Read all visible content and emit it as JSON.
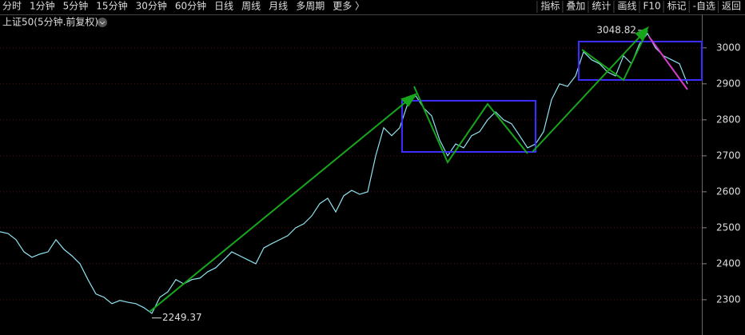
{
  "toolbar": {
    "left": [
      "分时",
      "1分钟",
      "5分钟",
      "15分钟",
      "30分钟",
      "60分钟",
      "日线",
      "周线",
      "月线",
      "多周期",
      "更多 〉"
    ],
    "active": 2,
    "right": [
      "指标",
      "叠加",
      "统计",
      "画线",
      "F10",
      "标记",
      "-自选",
      "返回"
    ]
  },
  "chart_data": {
    "type": "line",
    "title": "上证50(5分钟.前复权)",
    "color": "#8fe3f0",
    "values": [
      2489,
      2484,
      2467,
      2433,
      2418,
      2427,
      2433,
      2467,
      2440,
      2422,
      2400,
      2356,
      2316,
      2307,
      2289,
      2298,
      2293,
      2289,
      2278,
      2262,
      2307,
      2322,
      2356,
      2344,
      2356,
      2360,
      2378,
      2389,
      2411,
      2433,
      2422,
      2411,
      2400,
      2444,
      2456,
      2467,
      2478,
      2500,
      2511,
      2533,
      2567,
      2582,
      2544,
      2589,
      2604,
      2593,
      2600,
      2700,
      2778,
      2756,
      2778,
      2844,
      2867,
      2833,
      2811,
      2744,
      2700,
      2733,
      2722,
      2756,
      2767,
      2800,
      2822,
      2800,
      2789,
      2756,
      2722,
      2733,
      2767,
      2856,
      2900,
      2893,
      2922,
      2989,
      2967,
      2956,
      2933,
      2922,
      2978,
      2956,
      3011,
      3040,
      3000,
      2978,
      2967,
      2956,
      2900
    ],
    "high": 3048.82,
    "low": 2249.37,
    "ylim": [
      2202,
      3093
    ],
    "yticks": [
      2300,
      2400,
      2500,
      2600,
      2700,
      2800,
      2900,
      3000
    ],
    "grid": true
  }
}
